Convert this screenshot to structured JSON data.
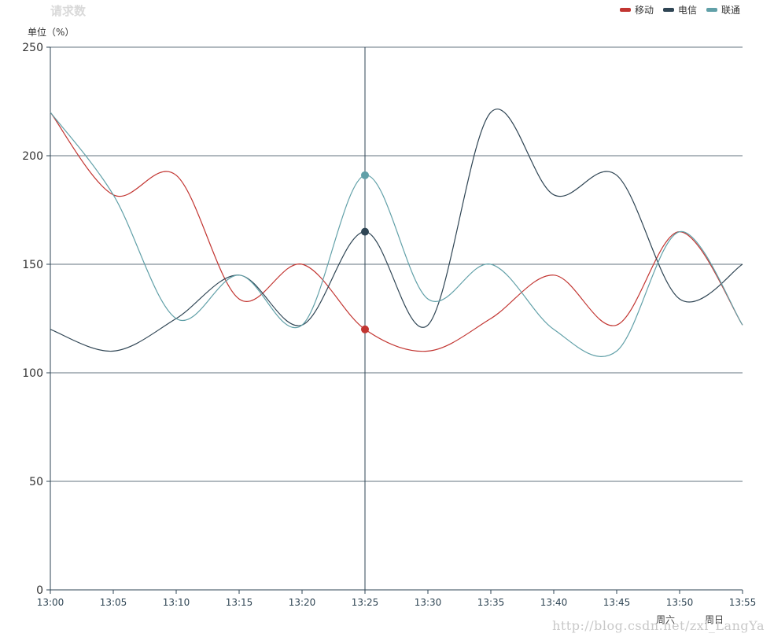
{
  "chart_data": {
    "type": "line",
    "title": "请求数",
    "ylabel": "单位（%）",
    "x": [
      "13:00",
      "13:05",
      "13:10",
      "13:15",
      "13:20",
      "13:25",
      "13:30",
      "13:35",
      "13:40",
      "13:45",
      "13:50",
      "13:55"
    ],
    "ylim": [
      0,
      250
    ],
    "yticks": [
      0,
      50,
      100,
      150,
      200,
      250
    ],
    "grid": true,
    "legend": "top-right",
    "crosshair_x": "13:25",
    "series": [
      {
        "name": "移动",
        "color": "#c23531",
        "values": [
          220,
          182,
          191,
          134,
          150,
          120,
          110,
          125,
          145,
          122,
          165,
          122
        ]
      },
      {
        "name": "电信",
        "color": "#2f4554",
        "values": [
          120,
          110,
          125,
          145,
          122,
          165,
          122,
          220,
          182,
          191,
          134,
          150
        ]
      },
      {
        "name": "联通",
        "color": "#61a0a8",
        "values": [
          220,
          182,
          125,
          145,
          122,
          191,
          134,
          150,
          120,
          110,
          165,
          122
        ]
      }
    ],
    "annotations": [
      "周六",
      "周日"
    ]
  },
  "watermark": "http://blog.csdn.net/zxl_LangYa"
}
